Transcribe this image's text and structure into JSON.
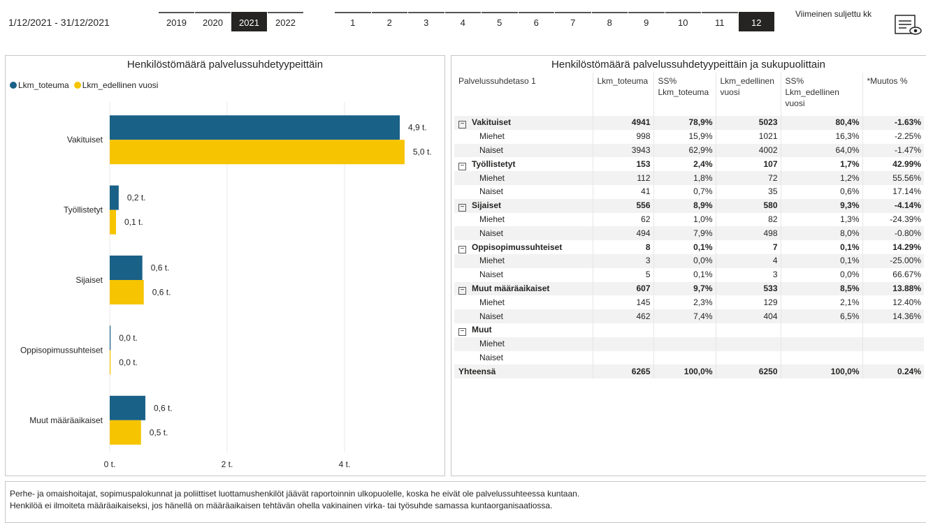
{
  "header": {
    "date_range": "1/12/2021 - 31/12/2021",
    "years": [
      "2019",
      "2020",
      "2021",
      "2022"
    ],
    "selected_year": "2021",
    "months": [
      "1",
      "2",
      "3",
      "4",
      "5",
      "6",
      "7",
      "8",
      "9",
      "10",
      "11",
      "12"
    ],
    "selected_month": "12",
    "last_closed_label": "Viimeinen suljettu kk"
  },
  "chart_data": {
    "type": "bar",
    "orientation": "horizontal",
    "title": "Henkilöstömäärä palvelussuhdetyypeittäin",
    "categories": [
      "Vakituiset",
      "Työllistetyt",
      "Sijaiset",
      "Oppisopimussuhteiset",
      "Muut määräaikaiset"
    ],
    "series": [
      {
        "name": "Lkm_toteuma",
        "color": "#1a6188",
        "values": [
          4941,
          153,
          556,
          8,
          607
        ],
        "labels": [
          "4,9 t.",
          "0,2 t.",
          "0,6 t.",
          "0,0 t.",
          "0,6 t."
        ]
      },
      {
        "name": "Lkm_edellinen vuosi",
        "color": "#f6c400",
        "values": [
          5023,
          107,
          580,
          7,
          533
        ],
        "labels": [
          "5,0 t.",
          "0,1 t.",
          "0,6 t.",
          "0,0 t.",
          "0,5 t."
        ]
      }
    ],
    "xlim": [
      0,
      5600
    ],
    "xticks": [
      0,
      2000,
      4000
    ],
    "xtick_labels": [
      "0 t.",
      "2 t.",
      "4 t."
    ],
    "grid": true,
    "legend": "top-left"
  },
  "table": {
    "title": "Henkilöstömäärä palvelussuhdetyypeittäin ja sukupuolittain",
    "columns": [
      "Palvelussuhdetaso 1",
      "Lkm_toteuma",
      "SS% Lkm_toteuma",
      "Lkm_edellinen vuosi",
      "SS% Lkm_edellinen vuosi",
      "*Muutos %"
    ],
    "rows": [
      {
        "type": "group",
        "cells": [
          "Vakituiset",
          "4941",
          "78,9%",
          "5023",
          "80,4%",
          "-1.63%"
        ]
      },
      {
        "type": "sub",
        "cells": [
          "Miehet",
          "998",
          "15,9%",
          "1021",
          "16,3%",
          "-2.25%"
        ]
      },
      {
        "type": "sub",
        "cells": [
          "Naiset",
          "3943",
          "62,9%",
          "4002",
          "64,0%",
          "-1.47%"
        ]
      },
      {
        "type": "group",
        "cells": [
          "Työllistetyt",
          "153",
          "2,4%",
          "107",
          "1,7%",
          "42.99%"
        ]
      },
      {
        "type": "sub",
        "cells": [
          "Miehet",
          "112",
          "1,8%",
          "72",
          "1,2%",
          "55.56%"
        ]
      },
      {
        "type": "sub",
        "cells": [
          "Naiset",
          "41",
          "0,7%",
          "35",
          "0,6%",
          "17.14%"
        ]
      },
      {
        "type": "group",
        "cells": [
          "Sijaiset",
          "556",
          "8,9%",
          "580",
          "9,3%",
          "-4.14%"
        ]
      },
      {
        "type": "sub",
        "cells": [
          "Miehet",
          "62",
          "1,0%",
          "82",
          "1,3%",
          "-24.39%"
        ]
      },
      {
        "type": "sub",
        "cells": [
          "Naiset",
          "494",
          "7,9%",
          "498",
          "8,0%",
          "-0.80%"
        ]
      },
      {
        "type": "group",
        "cells": [
          "Oppisopimussuhteiset",
          "8",
          "0,1%",
          "7",
          "0,1%",
          "14.29%"
        ]
      },
      {
        "type": "sub",
        "cells": [
          "Miehet",
          "3",
          "0,0%",
          "4",
          "0,1%",
          "-25.00%"
        ]
      },
      {
        "type": "sub",
        "cells": [
          "Naiset",
          "5",
          "0,1%",
          "3",
          "0,0%",
          "66.67%"
        ]
      },
      {
        "type": "group",
        "cells": [
          "Muut määräaikaiset",
          "607",
          "9,7%",
          "533",
          "8,5%",
          "13.88%"
        ]
      },
      {
        "type": "sub",
        "cells": [
          "Miehet",
          "145",
          "2,3%",
          "129",
          "2,1%",
          "12.40%"
        ]
      },
      {
        "type": "sub",
        "cells": [
          "Naiset",
          "462",
          "7,4%",
          "404",
          "6,5%",
          "14.36%"
        ]
      },
      {
        "type": "group",
        "cells": [
          "Muut",
          "",
          "",
          "",
          "",
          ""
        ]
      },
      {
        "type": "sub",
        "cells": [
          "Miehet",
          "",
          "",
          "",
          "",
          ""
        ]
      },
      {
        "type": "sub",
        "cells": [
          "Naiset",
          "",
          "",
          "",
          "",
          ""
        ]
      },
      {
        "type": "total",
        "cells": [
          "Yhteensä",
          "6265",
          "100,0%",
          "6250",
          "100,0%",
          "0.24%"
        ]
      }
    ]
  },
  "footnote": {
    "line1": "Perhe- ja omaishoitajat, sopimuspalokunnat ja poliittiset luottamushenkilöt jäävät raportoinnin ulkopuolelle, koska he eivät ole palvelussuhteessa kuntaan.",
    "line2": "Henkilöä ei ilmoiteta määräaikaiseksi, jos hänellä on määräaikaisen tehtävän ohella vakinainen virka- tai työsuhde samassa kuntaorganisaatiossa."
  },
  "icons": {
    "report": "report-view-icon",
    "expander": "collapse-minus-icon"
  }
}
